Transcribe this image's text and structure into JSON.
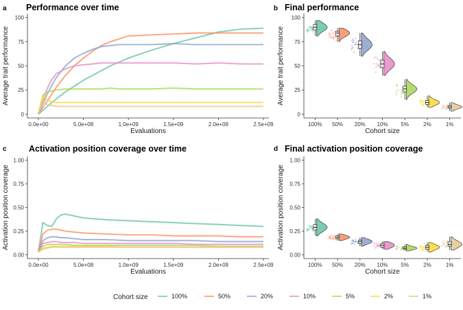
{
  "legend": {
    "title": "Cohort size",
    "entries": [
      {
        "label": "100%",
        "color": "#66c2a5"
      },
      {
        "label": "50%",
        "color": "#fc8d62"
      },
      {
        "label": "20%",
        "color": "#8da0cb"
      },
      {
        "label": "10%",
        "color": "#e78ac3"
      },
      {
        "label": "5%",
        "color": "#a6d854"
      },
      {
        "label": "2%",
        "color": "#ffd92f"
      },
      {
        "label": "1%",
        "color": "#e5c494"
      }
    ]
  },
  "chart_data": [
    {
      "panel": "a",
      "type": "line",
      "title": "Performance over time",
      "xlabel": "Evaluations",
      "ylabel": "Average trait performance",
      "xlim": [
        0,
        2500000000
      ],
      "ylim": [
        0,
        100
      ],
      "xticks": [
        0,
        500000000,
        1000000000,
        1500000000,
        2000000000,
        2500000000
      ],
      "xtick_labels": [
        "0.0e+00",
        "5.0e+08",
        "1.0e+09",
        "1.5e+09",
        "2.0e+09",
        "2.5e+09"
      ],
      "yticks": [
        0,
        25,
        50,
        75,
        100
      ],
      "ytick_labels": [
        "0",
        "25",
        "50",
        "75",
        "100"
      ],
      "x": [
        0,
        50000000,
        100000000,
        150000000,
        200000000,
        300000000,
        400000000,
        500000000,
        600000000,
        700000000,
        800000000,
        900000000,
        1000000000,
        1250000000,
        1500000000,
        1750000000,
        2000000000,
        2250000000,
        2500000000
      ],
      "series": [
        {
          "name": "100%",
          "values": [
            0,
            4,
            8,
            12,
            16,
            23,
            29,
            35,
            40,
            45,
            50,
            54,
            58,
            66,
            73,
            79,
            85,
            88,
            89
          ]
        },
        {
          "name": "50%",
          "values": [
            0,
            7,
            14,
            21,
            28,
            40,
            50,
            58,
            65,
            71,
            75,
            78,
            81,
            82,
            83,
            84,
            84,
            84,
            84
          ]
        },
        {
          "name": "20%",
          "values": [
            0,
            11,
            21,
            30,
            38,
            50,
            58,
            63,
            67,
            70,
            71,
            72,
            72,
            72,
            73,
            72,
            72,
            72,
            72
          ]
        },
        {
          "name": "10%",
          "values": [
            0,
            14,
            27,
            36,
            42,
            47,
            50,
            51,
            52,
            53,
            53,
            53,
            53,
            53,
            53,
            52,
            53,
            52,
            52
          ]
        },
        {
          "name": "5%",
          "values": [
            0,
            20,
            23,
            24,
            25,
            26,
            26,
            26,
            26,
            26,
            27,
            26,
            26,
            26,
            27,
            26,
            26,
            26,
            26
          ]
        },
        {
          "name": "2%",
          "values": [
            0,
            19,
            14,
            13,
            12,
            12,
            12,
            12,
            12,
            12,
            12,
            12,
            12,
            12,
            12,
            12,
            12,
            12,
            12
          ]
        },
        {
          "name": "1%",
          "values": [
            0,
            14,
            10,
            9,
            8,
            8,
            8,
            8,
            8,
            8,
            8,
            8,
            8,
            8,
            8,
            8,
            8,
            8,
            8
          ]
        }
      ]
    },
    {
      "panel": "b",
      "type": "violin",
      "title": "Final performance",
      "xlabel": "Cohort size",
      "ylabel": "Average trait performance",
      "ylim": [
        0,
        100
      ],
      "yticks": [
        0,
        25,
        50,
        75,
        100
      ],
      "ytick_labels": [
        "0",
        "25",
        "50",
        "75",
        "100"
      ],
      "categories": [
        "100%",
        "50%",
        "20%",
        "10%",
        "5%",
        "2%",
        "1%"
      ],
      "groups": [
        {
          "name": "100%",
          "min": 81,
          "q1": 87,
          "median": 90,
          "q3": 93,
          "max": 97
        },
        {
          "name": "50%",
          "min": 75,
          "q1": 81,
          "median": 84,
          "q3": 86,
          "max": 89
        },
        {
          "name": "20%",
          "min": 60,
          "q1": 68,
          "median": 72,
          "q3": 76,
          "max": 84
        },
        {
          "name": "10%",
          "min": 40,
          "q1": 48,
          "median": 52,
          "q3": 56,
          "max": 65
        },
        {
          "name": "5%",
          "min": 15,
          "q1": 23,
          "median": 26,
          "q3": 29,
          "max": 36
        },
        {
          "name": "2%",
          "min": 7,
          "q1": 10,
          "median": 12,
          "q3": 14,
          "max": 19
        },
        {
          "name": "1%",
          "min": 3,
          "q1": 6,
          "median": 7.5,
          "q3": 9,
          "max": 12
        }
      ]
    },
    {
      "panel": "c",
      "type": "line",
      "title": "Activation position coverage over time",
      "xlabel": "Evaluations",
      "ylabel": "Activation position coverage",
      "xlim": [
        0,
        2500000000
      ],
      "ylim": [
        0,
        1
      ],
      "xticks": [
        0,
        500000000,
        1000000000,
        1500000000,
        2000000000,
        2500000000
      ],
      "xtick_labels": [
        "0.0e+00",
        "5.0e+08",
        "1.0e+09",
        "1.5e+09",
        "2.0e+09",
        "2.5e+09"
      ],
      "yticks": [
        0,
        0.25,
        0.5,
        0.75,
        1
      ],
      "ytick_labels": [
        "0.00",
        "0.25",
        "0.50",
        "0.75",
        "1.00"
      ],
      "x": [
        0,
        50000000,
        100000000,
        150000000,
        200000000,
        250000000,
        300000000,
        400000000,
        500000000,
        750000000,
        1000000000,
        1250000000,
        1500000000,
        1750000000,
        2000000000,
        2250000000,
        2500000000
      ],
      "series": [
        {
          "name": "100%",
          "values": [
            0.03,
            0.34,
            0.31,
            0.3,
            0.38,
            0.42,
            0.43,
            0.41,
            0.39,
            0.37,
            0.36,
            0.35,
            0.34,
            0.33,
            0.32,
            0.31,
            0.3
          ]
        },
        {
          "name": "50%",
          "values": [
            0.03,
            0.22,
            0.26,
            0.27,
            0.27,
            0.26,
            0.25,
            0.24,
            0.23,
            0.22,
            0.21,
            0.21,
            0.2,
            0.2,
            0.2,
            0.19,
            0.19
          ]
        },
        {
          "name": "20%",
          "values": [
            0.03,
            0.15,
            0.18,
            0.19,
            0.19,
            0.18,
            0.18,
            0.17,
            0.16,
            0.16,
            0.15,
            0.15,
            0.15,
            0.15,
            0.14,
            0.14,
            0.14
          ]
        },
        {
          "name": "10%",
          "values": [
            0.03,
            0.12,
            0.13,
            0.14,
            0.14,
            0.13,
            0.13,
            0.13,
            0.12,
            0.12,
            0.12,
            0.12,
            0.12,
            0.11,
            0.11,
            0.11,
            0.11
          ]
        },
        {
          "name": "5%",
          "values": [
            0.03,
            0.09,
            0.11,
            0.11,
            0.11,
            0.11,
            0.11,
            0.1,
            0.1,
            0.1,
            0.1,
            0.1,
            0.1,
            0.1,
            0.09,
            0.09,
            0.09
          ]
        },
        {
          "name": "2%",
          "values": [
            0.03,
            0.07,
            0.08,
            0.09,
            0.09,
            0.09,
            0.09,
            0.09,
            0.09,
            0.09,
            0.08,
            0.08,
            0.08,
            0.08,
            0.08,
            0.08,
            0.08
          ]
        },
        {
          "name": "1%",
          "values": [
            0.03,
            0.06,
            0.07,
            0.08,
            0.08,
            0.08,
            0.08,
            0.08,
            0.08,
            0.08,
            0.08,
            0.08,
            0.08,
            0.08,
            0.08,
            0.08,
            0.08
          ]
        }
      ]
    },
    {
      "panel": "d",
      "type": "violin",
      "title": "Final activation position coverage",
      "xlabel": "Cohort size",
      "ylabel": "Activation position coverage",
      "ylim": [
        0,
        1
      ],
      "yticks": [
        0,
        0.25,
        0.5,
        0.75,
        1
      ],
      "ytick_labels": [
        "0.00",
        "0.25",
        "0.50",
        "0.75",
        "1.00"
      ],
      "categories": [
        "100%",
        "50%",
        "20%",
        "10%",
        "5%",
        "2%",
        "1%"
      ],
      "groups": [
        {
          "name": "100%",
          "min": 0.2,
          "q1": 0.26,
          "median": 0.29,
          "q3": 0.32,
          "max": 0.38
        },
        {
          "name": "50%",
          "min": 0.15,
          "q1": 0.17,
          "median": 0.185,
          "q3": 0.2,
          "max": 0.22
        },
        {
          "name": "20%",
          "min": 0.09,
          "q1": 0.12,
          "median": 0.14,
          "q3": 0.155,
          "max": 0.18
        },
        {
          "name": "10%",
          "min": 0.06,
          "q1": 0.08,
          "median": 0.1,
          "q3": 0.12,
          "max": 0.14
        },
        {
          "name": "5%",
          "min": 0.04,
          "q1": 0.06,
          "median": 0.07,
          "q3": 0.085,
          "max": 0.11
        },
        {
          "name": "2%",
          "min": 0.03,
          "q1": 0.06,
          "median": 0.08,
          "q3": 0.1,
          "max": 0.13
        },
        {
          "name": "1%",
          "min": 0.05,
          "q1": 0.09,
          "median": 0.11,
          "q3": 0.14,
          "max": 0.19
        }
      ]
    }
  ]
}
